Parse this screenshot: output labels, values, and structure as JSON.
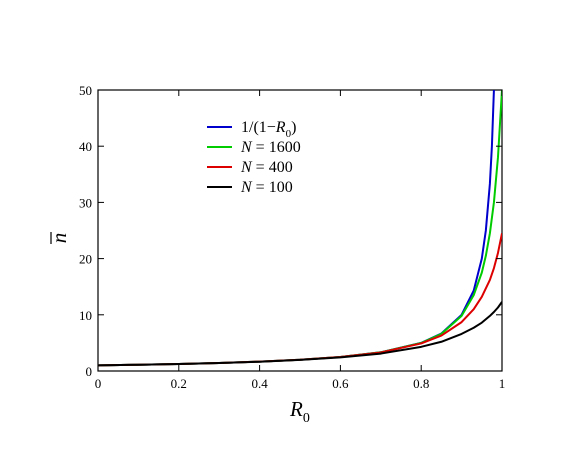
{
  "chart_data": {
    "type": "line",
    "xlabel": "R",
    "xlabel_sub": "0",
    "ylabel": "n",
    "xlim": [
      0,
      1
    ],
    "ylim": [
      0,
      50
    ],
    "xticks": [
      "0",
      "0.2",
      "0.4",
      "0.6",
      "0.8",
      "1"
    ],
    "xtick_values": [
      0,
      0.2,
      0.4,
      0.6,
      0.8,
      1
    ],
    "yticks": [
      "0",
      "10",
      "20",
      "30",
      "40",
      "50"
    ],
    "ytick_values": [
      0,
      10,
      20,
      30,
      40,
      50
    ],
    "grid": false,
    "legend_position": "top-left",
    "series": [
      {
        "name": "1/(1−R0)",
        "legend_parts": [
          "1/(1−",
          "R",
          "0",
          ")"
        ],
        "color": "#0000cc",
        "x": [
          0,
          0.1,
          0.2,
          0.3,
          0.4,
          0.5,
          0.6,
          0.7,
          0.8,
          0.85,
          0.9,
          0.93,
          0.95,
          0.96,
          0.97,
          0.975,
          0.98
        ],
        "y": [
          1.0,
          1.11,
          1.25,
          1.43,
          1.67,
          2.0,
          2.5,
          3.33,
          5.0,
          6.67,
          10.0,
          14.3,
          20.0,
          25.0,
          33.3,
          40.0,
          50.0
        ]
      },
      {
        "name": "N = 1600",
        "legend_parts": [
          "N",
          " = 1600"
        ],
        "color": "#00cc00",
        "x": [
          0,
          0.1,
          0.2,
          0.3,
          0.4,
          0.5,
          0.6,
          0.7,
          0.8,
          0.85,
          0.9,
          0.93,
          0.95,
          0.96,
          0.97,
          0.98,
          0.99,
          1.0
        ],
        "y": [
          1.0,
          1.11,
          1.25,
          1.43,
          1.67,
          2.0,
          2.5,
          3.33,
          4.98,
          6.6,
          9.8,
          13.5,
          17.5,
          20.5,
          24.5,
          30.0,
          38.0,
          50.0
        ]
      },
      {
        "name": "N = 400",
        "legend_parts": [
          "N",
          " = 400"
        ],
        "color": "#dd0000",
        "x": [
          0,
          0.1,
          0.2,
          0.3,
          0.4,
          0.5,
          0.6,
          0.7,
          0.8,
          0.85,
          0.9,
          0.93,
          0.95,
          0.97,
          0.98,
          0.99,
          1.0
        ],
        "y": [
          1.0,
          1.11,
          1.25,
          1.43,
          1.67,
          2.0,
          2.5,
          3.3,
          4.9,
          6.3,
          8.7,
          11.0,
          13.2,
          16.2,
          18.3,
          21.0,
          24.5
        ]
      },
      {
        "name": "N = 100",
        "legend_parts": [
          "N",
          " = 100"
        ],
        "color": "#000000",
        "x": [
          0,
          0.1,
          0.2,
          0.3,
          0.4,
          0.5,
          0.6,
          0.7,
          0.8,
          0.85,
          0.9,
          0.93,
          0.95,
          0.97,
          0.98,
          0.99,
          1.0
        ],
        "y": [
          1.0,
          1.11,
          1.25,
          1.42,
          1.65,
          1.97,
          2.42,
          3.1,
          4.3,
          5.2,
          6.6,
          7.7,
          8.6,
          9.8,
          10.5,
          11.3,
          12.3
        ]
      }
    ]
  }
}
